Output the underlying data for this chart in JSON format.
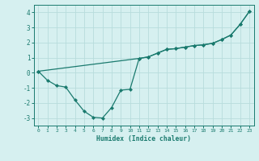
{
  "line1_x": [
    0,
    1,
    2,
    3,
    4,
    5,
    6,
    7,
    8,
    9,
    10,
    11,
    12,
    13,
    14,
    15,
    16,
    17,
    18,
    19,
    20,
    21,
    22,
    23
  ],
  "line1_y": [
    0.1,
    -0.5,
    -0.85,
    -0.95,
    -1.8,
    -2.55,
    -2.95,
    -3.0,
    -2.3,
    -1.15,
    -1.1,
    0.95,
    1.05,
    1.3,
    1.55,
    1.6,
    1.7,
    1.8,
    1.85,
    1.95,
    2.2,
    2.5,
    3.2,
    4.05
  ],
  "line2_x": [
    0,
    11,
    12,
    13,
    14,
    15,
    16,
    17,
    18,
    19,
    20,
    21,
    22,
    23
  ],
  "line2_y": [
    0.1,
    0.95,
    1.05,
    1.3,
    1.55,
    1.6,
    1.7,
    1.8,
    1.85,
    1.95,
    2.2,
    2.5,
    3.2,
    4.05
  ],
  "line_color": "#1a7a6e",
  "bg_color": "#d6f0f0",
  "grid_color": "#b8dcdc",
  "xlabel": "Humidex (Indice chaleur)",
  "ylim": [
    -3.5,
    4.5
  ],
  "xlim": [
    -0.5,
    23.5
  ],
  "yticks": [
    -3,
    -2,
    -1,
    0,
    1,
    2,
    3,
    4
  ],
  "xticks": [
    0,
    1,
    2,
    3,
    4,
    5,
    6,
    7,
    8,
    9,
    10,
    11,
    12,
    13,
    14,
    15,
    16,
    17,
    18,
    19,
    20,
    21,
    22,
    23
  ]
}
